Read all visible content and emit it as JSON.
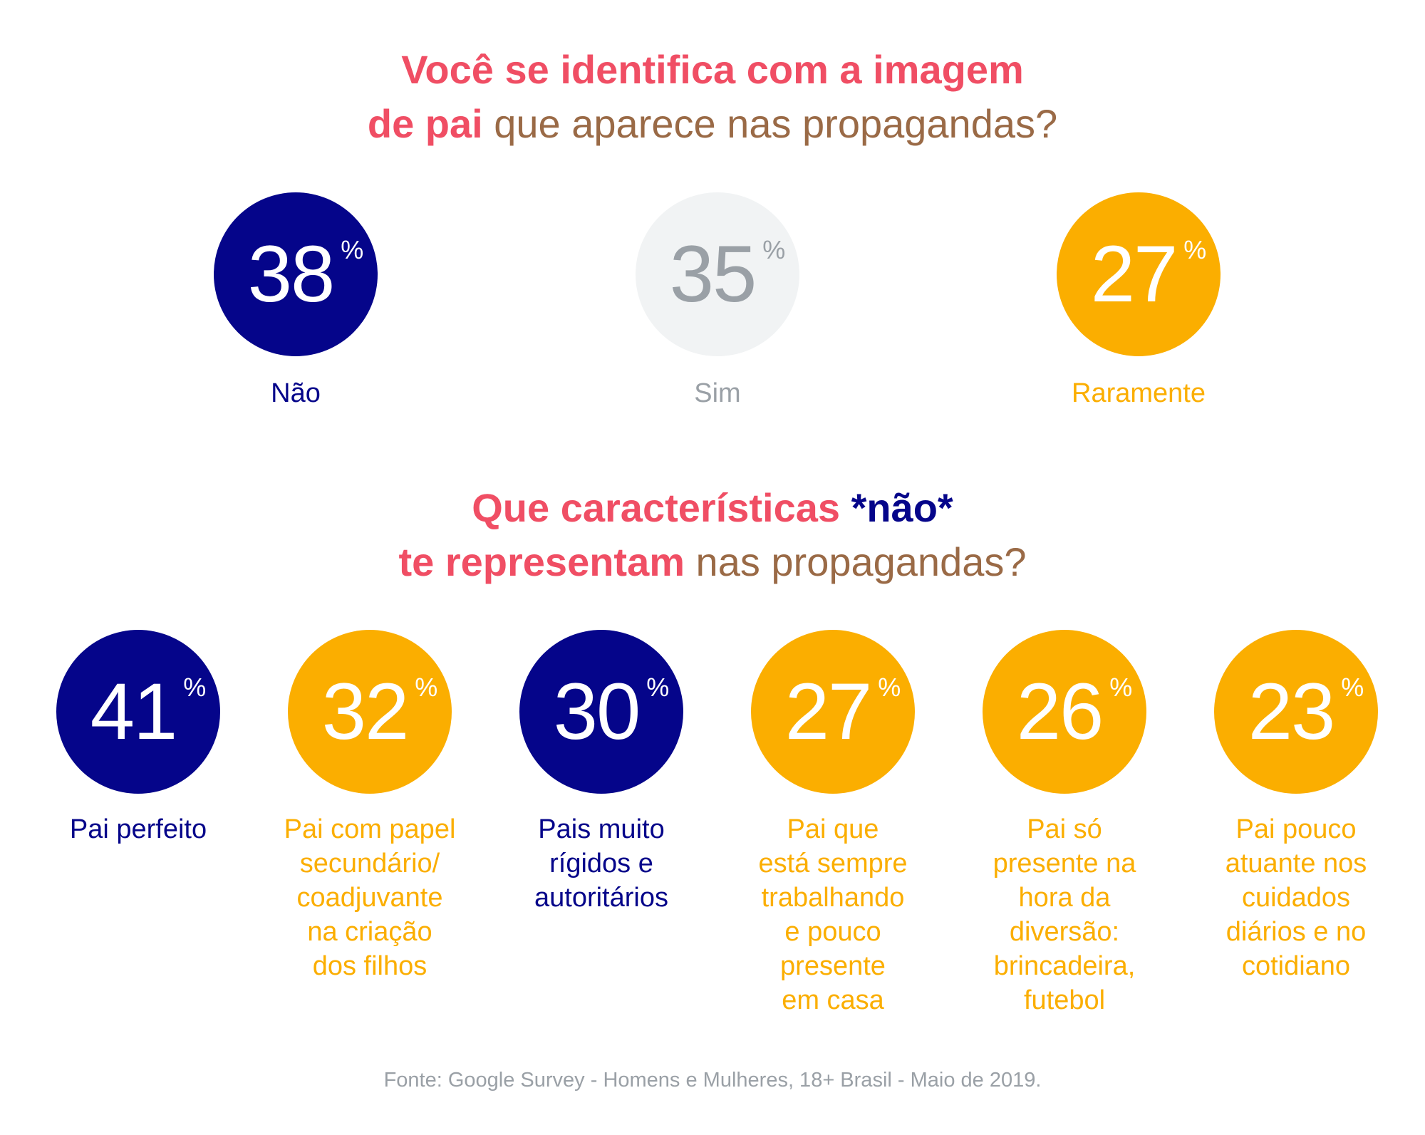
{
  "colors": {
    "accent": "#f04e64",
    "brown": "#9a6a46",
    "navy": "#05058a",
    "gray_bubble": "#f1f3f4",
    "gray_text": "#9aa0a6",
    "yellow": "#fbae00",
    "white": "#ffffff"
  },
  "question1": {
    "line1_accent": "Você se identifica com a imagem",
    "line2_accent": "de pai",
    "line2_plain": " que aparece nas propagandas?"
  },
  "question2": {
    "line1_accent": "Que características ",
    "line1_emph": "*não*",
    "line2_accent": "te representam",
    "line2_plain": " nas propagandas?"
  },
  "chart_data": [
    {
      "type": "bubble",
      "title": "Você se identifica com a imagem de pai que aparece nas propagandas?",
      "unit": "%",
      "categories": [
        "Não",
        "Sim",
        "Raramente"
      ],
      "values": [
        38,
        35,
        27
      ],
      "colors": [
        "#05058a",
        "#f1f3f4",
        "#fbae00"
      ]
    },
    {
      "type": "bubble",
      "title": "Que características *não* te representam nas propagandas?",
      "unit": "%",
      "categories": [
        "Pai perfeito",
        "Pai com papel\nsecundário/\ncoadjuvante\nna criação\ndos filhos",
        "Pais muito\nrígidos e\nautoritários",
        "Pai que\nestá sempre\ntrabalhando\ne pouco\npresente\nem casa",
        "Pai só\npresente na\nhora da\ndiversão:\nbrincadeira,\nfutebol",
        "Pai pouco\natuante nos\ncuidados\ndiários e no\ncotidiano"
      ],
      "values": [
        41,
        32,
        30,
        27,
        26,
        23
      ],
      "colors": [
        "#05058a",
        "#fbae00",
        "#05058a",
        "#fbae00",
        "#fbae00",
        "#fbae00"
      ]
    }
  ],
  "pct_symbol": "%",
  "footnote": "Fonte: Google Survey - Homens e Mulheres, 18+ Brasil - Maio de 2019."
}
